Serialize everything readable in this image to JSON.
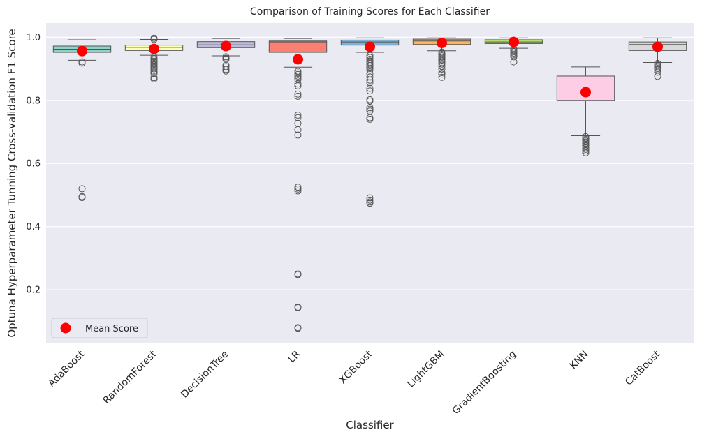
{
  "chart_data": {
    "type": "box",
    "title": "Comparison of Training Scores for Each Classifier",
    "xlabel": "Classifier",
    "ylabel": "Optuna Hyperparameter Tunning Cross-validation F1 Score",
    "ylim": [
      0.03,
      1.045
    ],
    "yticks": [
      0.2,
      0.4,
      0.6,
      0.8,
      1.0
    ],
    "ytick_labels": [
      "0.2",
      "0.4",
      "0.6",
      "0.8",
      "1.0"
    ],
    "grid": true,
    "legend": {
      "position": "lower-left",
      "entries": [
        "Mean Score"
      ]
    },
    "mean_color": "#ff0000",
    "box_edge_color": "#555555",
    "series": [
      {
        "name": "AdaBoost",
        "color": "#8dd3c7",
        "q1": 0.952,
        "median": 0.962,
        "q3": 0.972,
        "whisker_low": 0.927,
        "whisker_high": 0.992,
        "mean": 0.956,
        "outliers": [
          0.918,
          0.922,
          0.52,
          0.495,
          0.492
        ]
      },
      {
        "name": "RandomForest",
        "color": "#ffffb3",
        "q1": 0.958,
        "median": 0.968,
        "q3": 0.975,
        "whisker_low": 0.943,
        "whisker_high": 0.993,
        "mean": 0.963,
        "outliers": [
          0.997,
          0.993,
          0.937,
          0.932,
          0.928,
          0.924,
          0.92,
          0.916,
          0.912,
          0.908,
          0.904,
          0.9,
          0.895,
          0.89,
          0.885,
          0.872,
          0.868
        ]
      },
      {
        "name": "DecisionTree",
        "color": "#bebada",
        "q1": 0.967,
        "median": 0.976,
        "q3": 0.986,
        "whisker_low": 0.941,
        "whisker_high": 0.996,
        "mean": 0.972,
        "outliers": [
          0.938,
          0.934,
          0.93,
          0.912,
          0.907,
          0.898,
          0.893
        ]
      },
      {
        "name": "LR",
        "color": "#fb8072",
        "q1": 0.952,
        "median": 0.985,
        "q3": 0.988,
        "whisker_low": 0.905,
        "whisker_high": 0.996,
        "mean": 0.93,
        "outliers": [
          0.892,
          0.887,
          0.882,
          0.877,
          0.872,
          0.866,
          0.852,
          0.846,
          0.82,
          0.813,
          0.753,
          0.745,
          0.727,
          0.707,
          0.69,
          0.525,
          0.519,
          0.513,
          0.25,
          0.248,
          0.145,
          0.143,
          0.08,
          0.078
        ]
      },
      {
        "name": "XGBoost",
        "color": "#80b1d3",
        "q1": 0.975,
        "median": 0.985,
        "q3": 0.991,
        "whisker_low": 0.952,
        "whisker_high": 0.998,
        "mean": 0.97,
        "outliers": [
          0.942,
          0.936,
          0.93,
          0.925,
          0.92,
          0.915,
          0.91,
          0.906,
          0.901,
          0.896,
          0.884,
          0.874,
          0.864,
          0.856,
          0.838,
          0.83,
          0.802,
          0.798,
          0.777,
          0.772,
          0.766,
          0.745,
          0.74,
          0.491,
          0.484,
          0.478,
          0.474
        ]
      },
      {
        "name": "LightGBM",
        "color": "#fdb462",
        "q1": 0.977,
        "median": 0.988,
        "q3": 0.994,
        "whisker_low": 0.957,
        "whisker_high": 0.998,
        "mean": 0.982,
        "outliers": [
          0.953,
          0.949,
          0.945,
          0.941,
          0.937,
          0.933,
          0.929,
          0.925,
          0.92,
          0.915,
          0.908,
          0.899,
          0.888,
          0.883,
          0.873
        ]
      },
      {
        "name": "GradientBoosting",
        "color": "#b3de69",
        "q1": 0.98,
        "median": 0.985,
        "q3": 0.992,
        "whisker_low": 0.965,
        "whisker_high": 0.998,
        "mean": 0.985,
        "outliers": [
          0.962,
          0.958,
          0.954,
          0.95,
          0.946,
          0.942,
          0.938,
          0.922
        ]
      },
      {
        "name": "KNN",
        "color": "#fccde5",
        "q1": 0.8,
        "median": 0.836,
        "q3": 0.877,
        "whisker_low": 0.688,
        "whisker_high": 0.906,
        "mean": 0.826,
        "outliers": [
          0.685,
          0.68,
          0.676,
          0.672,
          0.668,
          0.664,
          0.66,
          0.656,
          0.65,
          0.645,
          0.64,
          0.634
        ]
      },
      {
        "name": "CatBoost",
        "color": "#d9d9d9",
        "q1": 0.958,
        "median": 0.977,
        "q3": 0.985,
        "whisker_low": 0.92,
        "whisker_high": 0.998,
        "mean": 0.97,
        "outliers": [
          0.917,
          0.913,
          0.909,
          0.905,
          0.901,
          0.897,
          0.889,
          0.876
        ]
      }
    ]
  }
}
